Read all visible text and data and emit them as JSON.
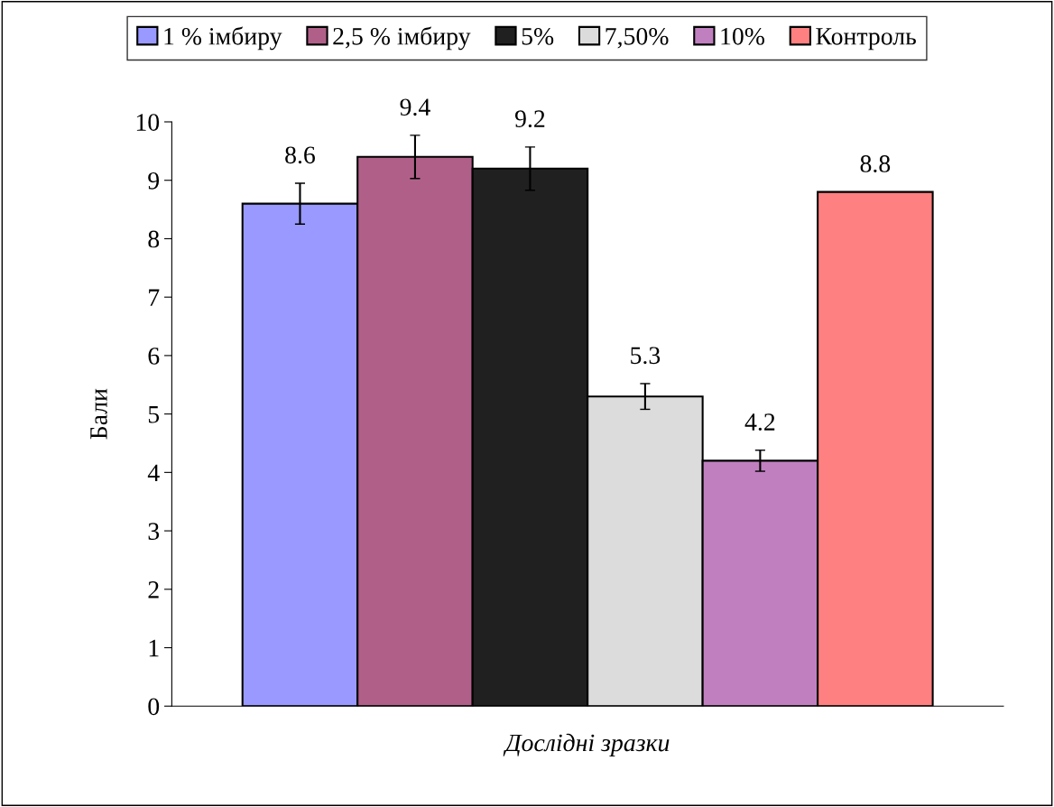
{
  "chart_data": {
    "type": "bar",
    "ylabel": "Бали",
    "xlabel": "Дослідні зразки",
    "categories": [
      null
    ],
    "series": [
      {
        "name": "1 % імбиру",
        "color": "#9999ff",
        "values": [
          8.6
        ],
        "errors": [
          0.35
        ]
      },
      {
        "name": "2,5 % імбиру",
        "color": "#b06088",
        "values": [
          9.4
        ],
        "errors": [
          0.37
        ]
      },
      {
        "name": "5%",
        "color": "#202020",
        "values": [
          9.2
        ],
        "errors": [
          0.37
        ]
      },
      {
        "name": "7,50%",
        "color": "#dcdcdc",
        "values": [
          5.3
        ],
        "errors": [
          0.22
        ]
      },
      {
        "name": "10%",
        "color": "#c080c0",
        "values": [
          4.2
        ],
        "errors": [
          0.18
        ]
      },
      {
        "name": "Контроль",
        "color": "#ff8080",
        "values": [
          8.8
        ]
      }
    ],
    "ylim": [
      0,
      10
    ],
    "yticks": [
      0,
      1,
      2,
      3,
      4,
      5,
      6,
      7,
      8,
      9,
      10
    ],
    "data_labels": true,
    "legend": "top",
    "tick_labels": "y",
    "grid": false
  }
}
